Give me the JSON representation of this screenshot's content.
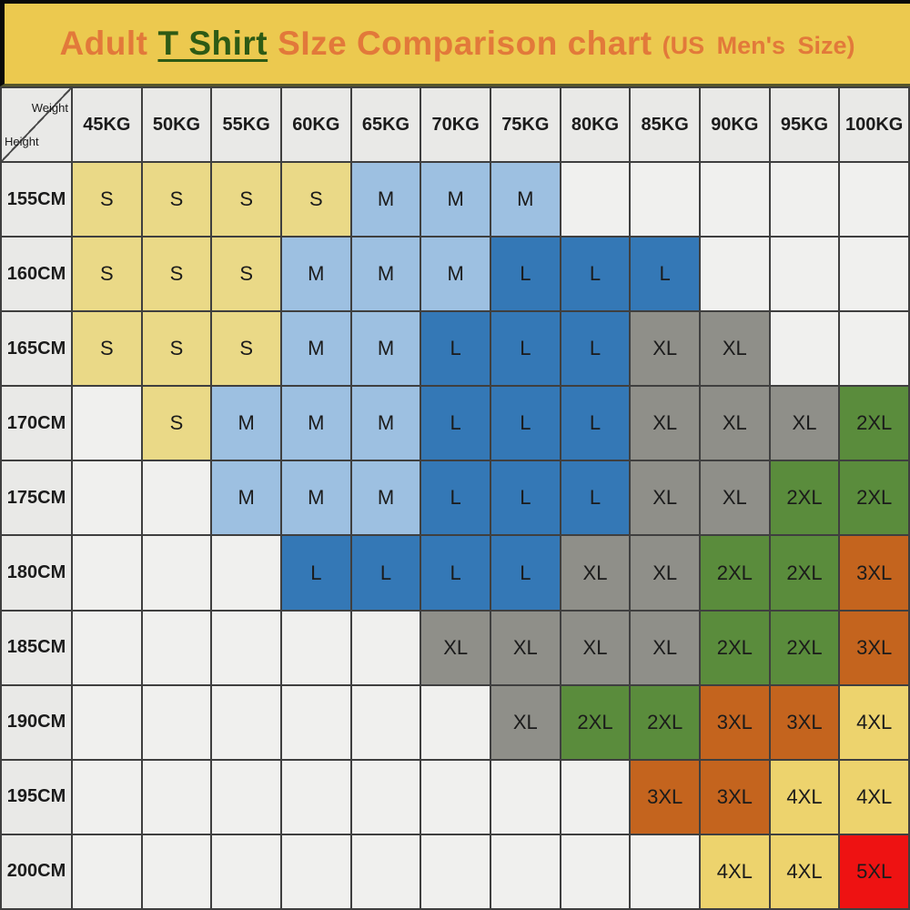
{
  "title": {
    "prefix": "Adult",
    "emphasis": "T Shirt",
    "main": "SIze Comparison chart",
    "note": "(US Men's Size)"
  },
  "corner": {
    "top_label": "Weight",
    "bottom_label": "Height"
  },
  "chart_data": {
    "type": "heatmap",
    "title": "Adult T Shirt SIze Comparison chart (US Men's Size)",
    "xlabel": "Weight",
    "ylabel": "Height",
    "x_categories": [
      "45KG",
      "50KG",
      "55KG",
      "60KG",
      "65KG",
      "70KG",
      "75KG",
      "80KG",
      "85KG",
      "90KG",
      "95KG",
      "100KG"
    ],
    "y_categories": [
      "155CM",
      "160CM",
      "165CM",
      "170CM",
      "175CM",
      "180CM",
      "185CM",
      "190CM",
      "195CM",
      "200CM"
    ],
    "cells": [
      [
        "S",
        "S",
        "S",
        "S",
        "M",
        "M",
        "M",
        "",
        "",
        "",
        "",
        ""
      ],
      [
        "S",
        "S",
        "S",
        "M",
        "M",
        "M",
        "L",
        "L",
        "L",
        "",
        "",
        ""
      ],
      [
        "S",
        "S",
        "S",
        "M",
        "M",
        "L",
        "L",
        "L",
        "XL",
        "XL",
        "",
        ""
      ],
      [
        "",
        "S",
        "M",
        "M",
        "M",
        "L",
        "L",
        "L",
        "XL",
        "XL",
        "XL",
        "2XL"
      ],
      [
        "",
        "",
        "M",
        "M",
        "M",
        "L",
        "L",
        "L",
        "XL",
        "XL",
        "2XL",
        "2XL"
      ],
      [
        "",
        "",
        "",
        "L",
        "L",
        "L",
        "L",
        "XL",
        "XL",
        "2XL",
        "2XL",
        "3XL"
      ],
      [
        "",
        "",
        "",
        "",
        "",
        "XL",
        "XL",
        "XL",
        "XL",
        "2XL",
        "2XL",
        "3XL"
      ],
      [
        "",
        "",
        "",
        "",
        "",
        "",
        "XL",
        "2XL",
        "2XL",
        "3XL",
        "3XL",
        "4XL"
      ],
      [
        "",
        "",
        "",
        "",
        "",
        "",
        "",
        "",
        "3XL",
        "3XL",
        "4XL",
        "4XL"
      ],
      [
        "",
        "",
        "",
        "",
        "",
        "",
        "",
        "",
        "",
        "4XL",
        "4XL",
        "5XL"
      ]
    ],
    "size_colors": {
      "S": "#ead987",
      "M": "#9dc0e1",
      "L": "#3478b6",
      "XL": "#8f8f89",
      "2XL": "#5a8c3c",
      "3XL": "#c4641e",
      "4XL": "#edd36d",
      "5XL": "#ee1212"
    },
    "empty_color": "#f0f0ee",
    "legend_position": "none",
    "grid": true
  },
  "colors": {
    "banner_bg": "#ecc94f",
    "banner_text_orange": "#e2793a",
    "banner_text_green": "#2d5a15",
    "header_bg": "#e9e9e7",
    "grid_line": "#3f3f3f",
    "cell_text": "#1b1b1b"
  }
}
